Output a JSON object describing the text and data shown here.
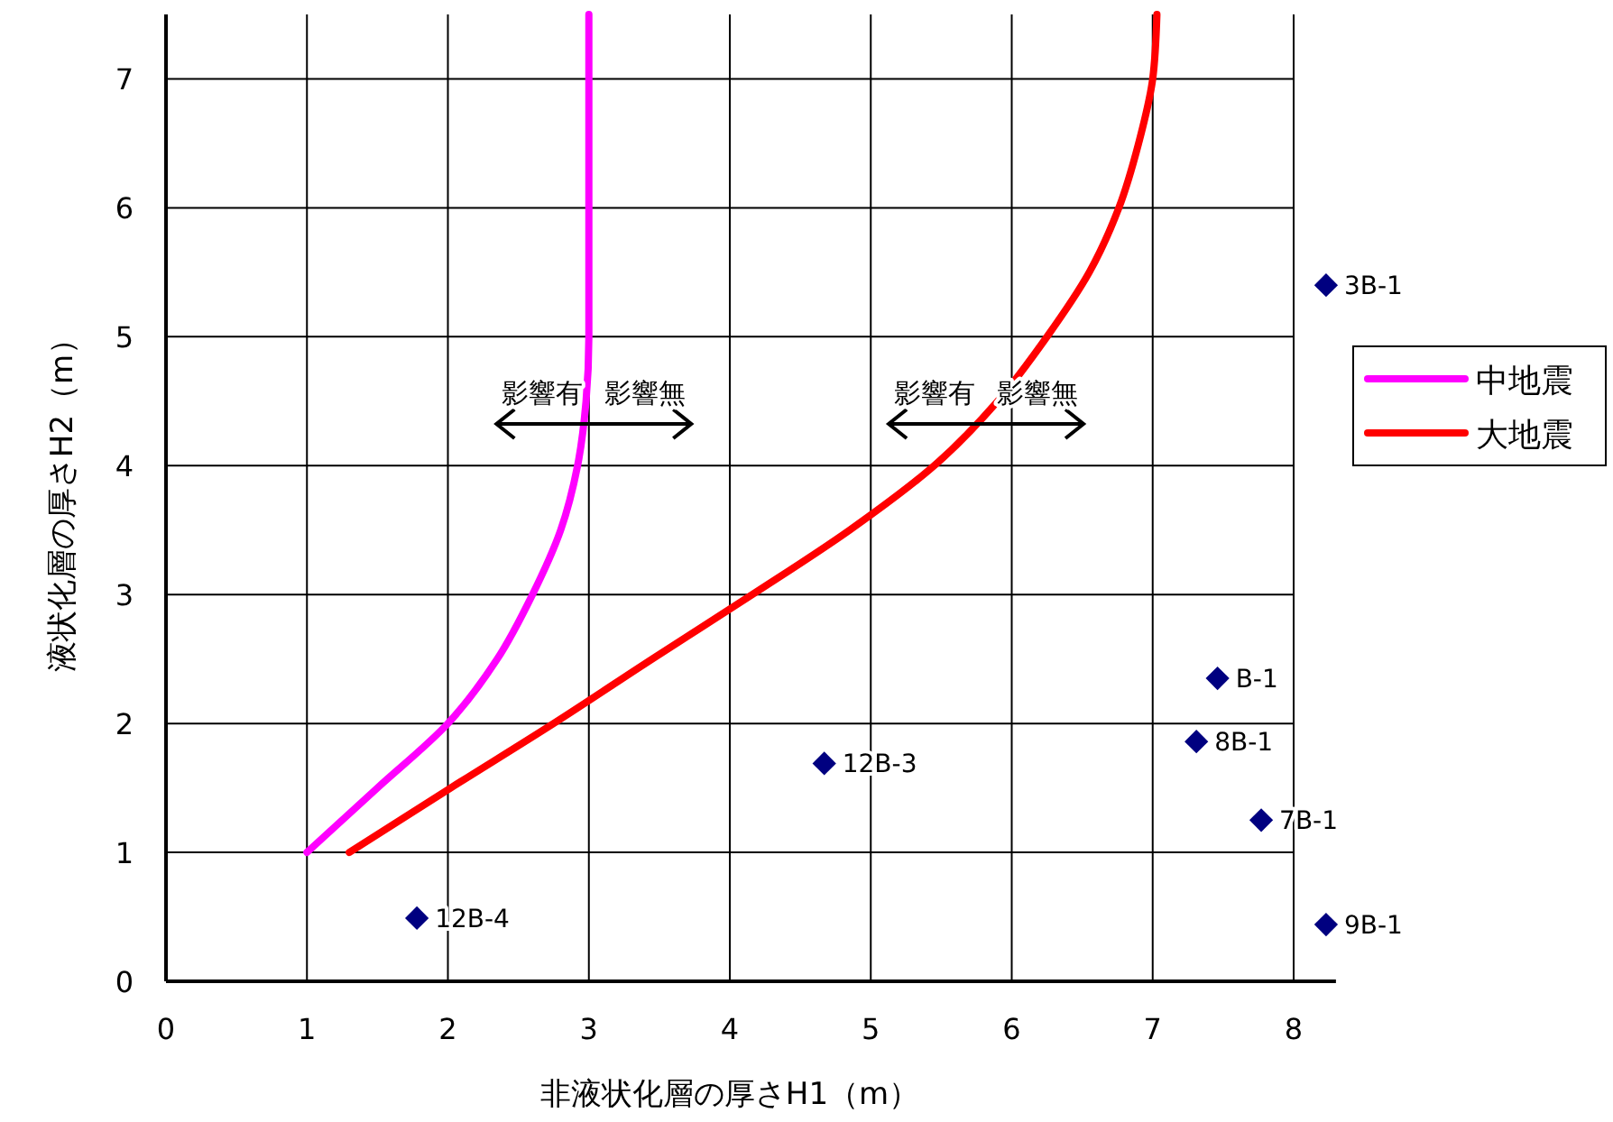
{
  "chart_data": {
    "type": "scatter",
    "xlabel": "非液状化層の厚さH1（m）",
    "ylabel": "液状化層の厚さH2（m）",
    "xlim": [
      0,
      8.3
    ],
    "xticks": [
      0,
      1,
      2,
      3,
      4,
      5,
      6,
      7,
      8
    ],
    "ylim": [
      0,
      7.5
    ],
    "yticks": [
      0,
      1,
      2,
      3,
      4,
      5,
      6,
      7
    ],
    "grid": true,
    "legend": "right",
    "series": [
      {
        "name": "中地震",
        "type": "line",
        "marker": "none",
        "color": "#ff00ff",
        "x": [
          1,
          1.5,
          2,
          2.35,
          2.6,
          2.8,
          2.92,
          2.98,
          3.0,
          3.0,
          3.0,
          3.0
        ],
        "values": [
          1,
          1.5,
          2,
          2.5,
          3,
          3.5,
          4,
          4.5,
          5,
          6,
          7,
          7.5
        ]
      },
      {
        "name": "大地震",
        "type": "line",
        "marker": "none",
        "color": "#ff0000",
        "x": [
          1.3,
          2.02,
          2.75,
          3.45,
          4.16,
          4.85,
          5.45,
          5.9,
          6.25,
          6.55,
          6.76,
          6.9,
          7.0,
          7.03
        ],
        "values": [
          1,
          1.5,
          2,
          2.5,
          3,
          3.5,
          4,
          4.5,
          5,
          5.5,
          6,
          6.5,
          7,
          7.5
        ]
      },
      {
        "name": "3B-1",
        "color": "#000080",
        "x": [
          8.23
        ],
        "values": [
          5.4
        ]
      },
      {
        "name": "B-1",
        "color": "#000080",
        "x": [
          7.46
        ],
        "values": [
          2.35
        ]
      },
      {
        "name": "8B-1",
        "color": "#000080",
        "x": [
          7.31
        ],
        "values": [
          1.86
        ]
      },
      {
        "name": "7B-1",
        "color": "#000080",
        "x": [
          7.77
        ],
        "values": [
          1.25
        ]
      },
      {
        "name": "9B-1",
        "color": "#000080",
        "x": [
          8.23
        ],
        "values": [
          0.44
        ]
      },
      {
        "name": "12B-3",
        "color": "#000080",
        "x": [
          4.67
        ],
        "values": [
          1.69
        ]
      },
      {
        "name": "12B-4",
        "color": "#000080",
        "x": [
          1.78
        ],
        "values": [
          0.49
        ]
      }
    ],
    "marker": "diamond",
    "annotations": [
      "影響有",
      "影響無",
      "影響有",
      "影響無"
    ]
  }
}
